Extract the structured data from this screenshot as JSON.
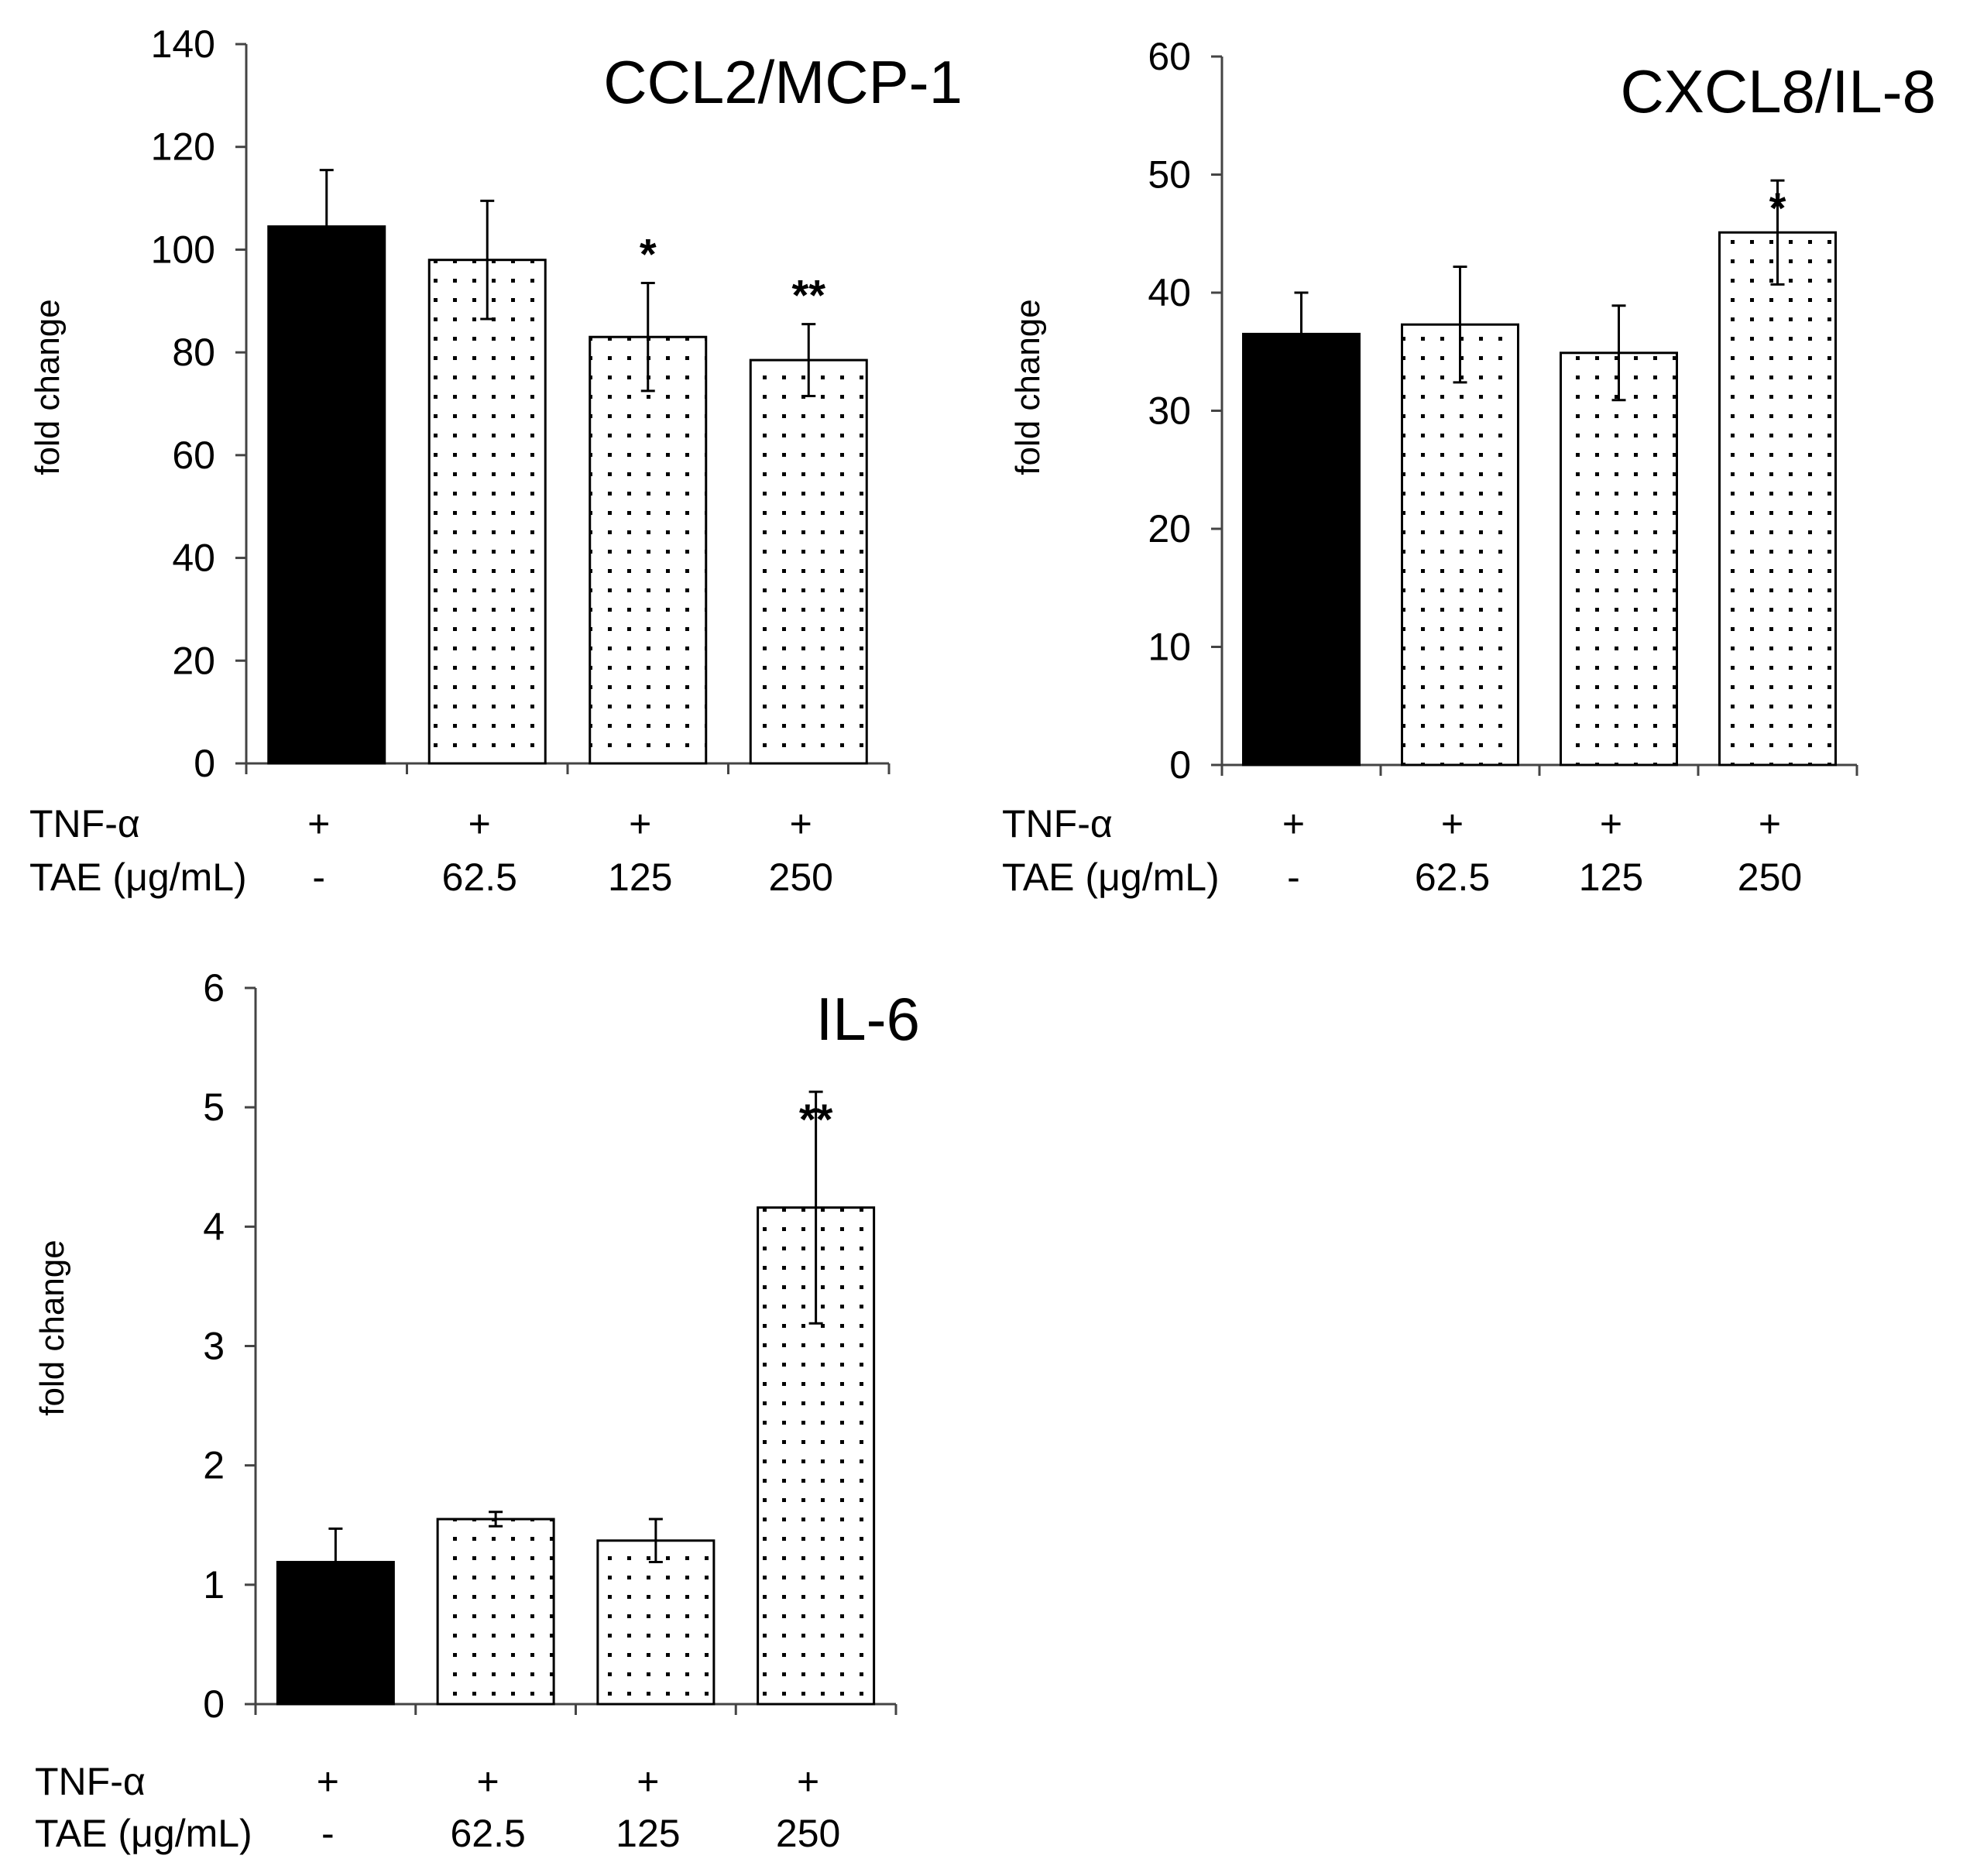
{
  "chart_data": [
    {
      "type": "bar",
      "title": "CCL2/MCP-1",
      "ylabel": "fold change",
      "xlabel": "",
      "ylim": [
        0,
        140
      ],
      "yticks": [
        0,
        20,
        40,
        60,
        80,
        100,
        120,
        140
      ],
      "ytick_labels": [
        "0",
        "20",
        "40",
        "60",
        "80",
        "100",
        "120",
        "140"
      ],
      "categories": [
        "-",
        "62.5",
        "125",
        "250"
      ],
      "values": [
        104.5,
        98,
        83,
        78.5
      ],
      "errors": [
        11,
        11.5,
        10.5,
        7
      ],
      "fills": [
        "solid",
        "dotted",
        "dotted",
        "dotted"
      ],
      "significance": [
        "",
        "",
        "*",
        "**"
      ],
      "conditions": [
        {
          "label": "TNF-α",
          "values": [
            "+",
            "+",
            "+",
            "+"
          ]
        },
        {
          "label": "TAE (μg/mL)",
          "values": [
            "-",
            "62.5",
            "125",
            "250"
          ]
        }
      ]
    },
    {
      "type": "bar",
      "title": "CXCL8/IL-8",
      "ylabel": "fold change",
      "xlabel": "",
      "ylim": [
        0,
        60
      ],
      "yticks": [
        0,
        10,
        20,
        30,
        40,
        50,
        60
      ],
      "ytick_labels": [
        "0",
        "10",
        "20",
        "30",
        "40",
        "50",
        "60"
      ],
      "categories": [
        "-",
        "62.5",
        "125",
        "250"
      ],
      "values": [
        36.5,
        37.3,
        34.9,
        45.1
      ],
      "errors": [
        3.5,
        4.9,
        4,
        4.4
      ],
      "fills": [
        "solid",
        "dotted",
        "dotted",
        "dotted"
      ],
      "significance": [
        "",
        "",
        "",
        "*"
      ],
      "conditions": [
        {
          "label": "TNF-α",
          "values": [
            "+",
            "+",
            "+",
            "+"
          ]
        },
        {
          "label": "TAE (μg/mL)",
          "values": [
            "-",
            "62.5",
            "125",
            "250"
          ]
        }
      ]
    },
    {
      "type": "bar",
      "title": "IL-6",
      "ylabel": "fold change",
      "xlabel": "",
      "ylim": [
        0,
        6
      ],
      "yticks": [
        0,
        1,
        2,
        3,
        4,
        5,
        6
      ],
      "ytick_labels": [
        "0",
        "1",
        "2",
        "3",
        "4",
        "5",
        "6"
      ],
      "categories": [
        "-",
        "62.5",
        "125",
        "250"
      ],
      "values": [
        1.19,
        1.55,
        1.37,
        4.16
      ],
      "errors": [
        0.28,
        0.06,
        0.18,
        0.97
      ],
      "fills": [
        "solid",
        "dotted",
        "dotted",
        "dotted"
      ],
      "significance": [
        "",
        "",
        "",
        "**"
      ],
      "conditions": [
        {
          "label": "TNF-α",
          "values": [
            "+",
            "+",
            "+",
            "+"
          ]
        },
        {
          "label": "TAE (μg/mL)",
          "values": [
            "-",
            "62.5",
            "125",
            "250"
          ]
        }
      ]
    }
  ]
}
